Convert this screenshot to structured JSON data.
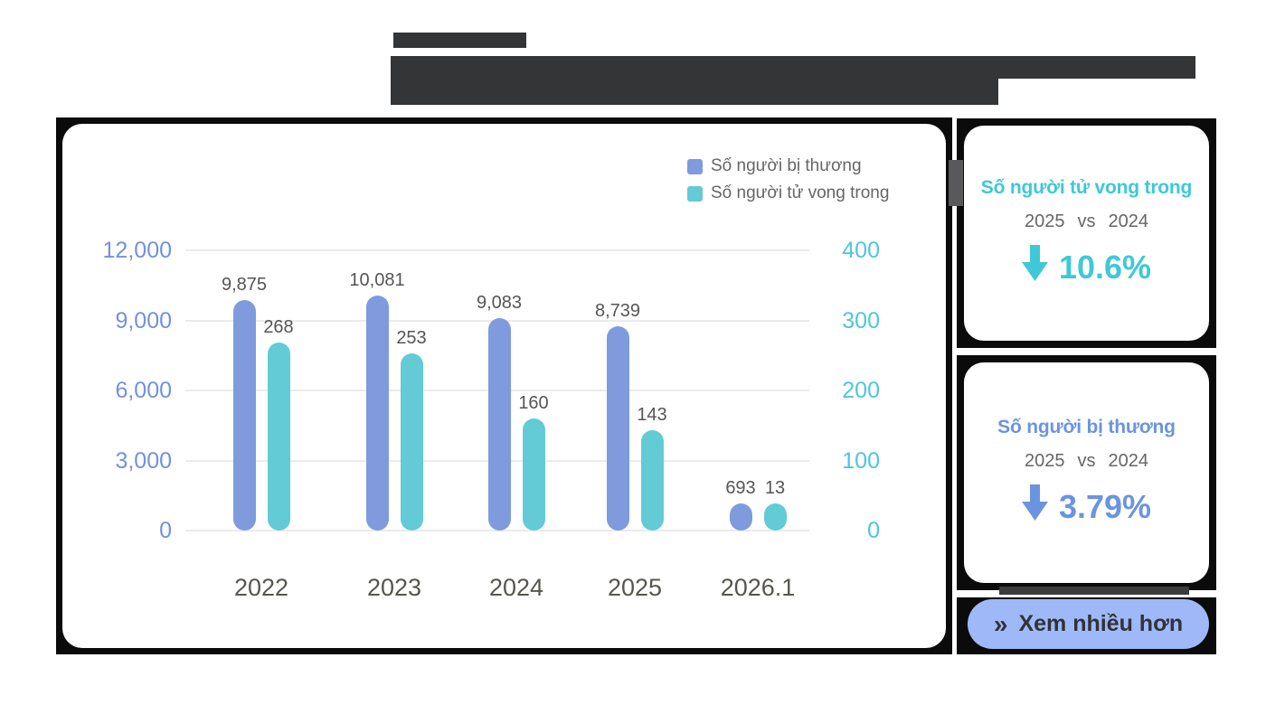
{
  "chart_data": {
    "type": "bar",
    "categories": [
      "2022",
      "2023",
      "2024",
      "2025",
      "2026.1"
    ],
    "series": [
      {
        "name": "Số người bị thương",
        "axis": "left",
        "color": "#7f9bde",
        "values": [
          9875,
          10081,
          9083,
          8739,
          693
        ],
        "labels": [
          "9,875",
          "10,081",
          "9,083",
          "8,739",
          "693"
        ]
      },
      {
        "name": "Số người tử vong trong",
        "axis": "right",
        "color": "#62cbd5",
        "values": [
          268,
          253,
          160,
          143,
          13
        ],
        "labels": [
          "268",
          "253",
          "160",
          "143",
          "13"
        ]
      }
    ],
    "left_axis": {
      "ticks": [
        "0",
        "3,000",
        "6,000",
        "9,000",
        "12,000"
      ],
      "min": 0,
      "max": 12000,
      "color": "#7292dc"
    },
    "right_axis": {
      "ticks": [
        "0",
        "100",
        "200",
        "300",
        "400"
      ],
      "min": 0,
      "max": 400,
      "color": "#4fc6da"
    },
    "grid": true,
    "legend_position": "top-right",
    "title": ""
  },
  "stat_cards": [
    {
      "title": "Số người tử vong trong",
      "accent": "#3ec8d8",
      "compare": {
        "year_a": "2025",
        "vs": "vs",
        "year_b": "2024"
      },
      "direction": "down",
      "change": "10.6%"
    },
    {
      "title": "Số người bị thương",
      "accent": "#6b94e0",
      "compare": {
        "year_a": "2025",
        "vs": "vs",
        "year_b": "2024"
      },
      "direction": "down",
      "change": "3.79%"
    }
  ],
  "more_button": {
    "chevron": "»",
    "label": "Xem nhiều hơn",
    "bg": "#9fb9f8",
    "text_color": "#2f3338"
  },
  "theme": {
    "frame_color": "#0b0b0b",
    "redaction_color": "#333537",
    "gridline_color": "#ececec",
    "bar_label_color": "#555555",
    "x_label_color": "#57564d",
    "legend_text_color": "#666666"
  }
}
